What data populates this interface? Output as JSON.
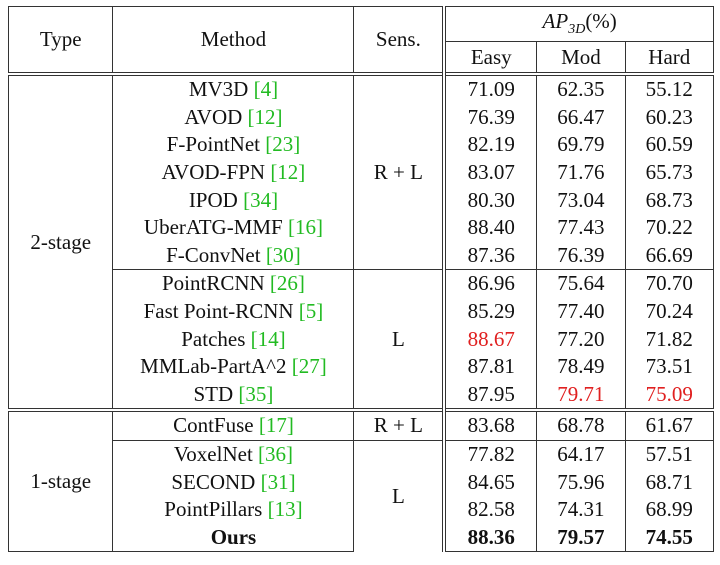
{
  "header": {
    "type": "Type",
    "method": "Method",
    "sens": "Sens.",
    "metric": "AP",
    "metric_sub": "3D",
    "metric_unit": "(%)",
    "columns": [
      "Easy",
      "Mod",
      "Hard"
    ]
  },
  "groups": [
    {
      "type": "2-stage",
      "subgroups": [
        {
          "sensor": "R + L",
          "rows": [
            {
              "method": "MV3D",
              "ref": "[4]",
              "easy": "71.09",
              "mod": "62.35",
              "hard": "55.12"
            },
            {
              "method": "AVOD",
              "ref": "[12]",
              "easy": "76.39",
              "mod": "66.47",
              "hard": "60.23"
            },
            {
              "method": "F-PointNet",
              "ref": "[23]",
              "easy": "82.19",
              "mod": "69.79",
              "hard": "60.59"
            },
            {
              "method": "AVOD-FPN",
              "ref": "[12]",
              "easy": "83.07",
              "mod": "71.76",
              "hard": "65.73"
            },
            {
              "method": "IPOD",
              "ref": "[34]",
              "easy": "80.30",
              "mod": "73.04",
              "hard": "68.73"
            },
            {
              "method": "UberATG-MMF",
              "ref": "[16]",
              "easy": "88.40",
              "mod": "77.43",
              "hard": "70.22"
            },
            {
              "method": "F-ConvNet",
              "ref": "[30]",
              "easy": "87.36",
              "mod": "76.39",
              "hard": "66.69"
            }
          ]
        },
        {
          "sensor": "L",
          "rows": [
            {
              "method": "PointRCNN",
              "ref": "[26]",
              "easy": "86.96",
              "mod": "75.64",
              "hard": "70.70"
            },
            {
              "method": "Fast Point-RCNN",
              "ref": "[5]",
              "easy": "85.29",
              "mod": "77.40",
              "hard": "70.24"
            },
            {
              "method": "Patches",
              "ref": "[14]",
              "easy": "88.67",
              "mod": "77.20",
              "hard": "71.82",
              "highlight": [
                "easy"
              ]
            },
            {
              "method": "MMLab-PartA^2",
              "ref": "[27]",
              "easy": "87.81",
              "mod": "78.49",
              "hard": "73.51"
            },
            {
              "method": "STD",
              "ref": "[35]",
              "easy": "87.95",
              "mod": "79.71",
              "hard": "75.09",
              "highlight": [
                "mod",
                "hard"
              ]
            }
          ]
        }
      ]
    },
    {
      "type": "1-stage",
      "subgroups": [
        {
          "sensor": "R + L",
          "rows": [
            {
              "method": "ContFuse",
              "ref": "[17]",
              "easy": "83.68",
              "mod": "68.78",
              "hard": "61.67"
            }
          ]
        },
        {
          "sensor": "L",
          "rows": [
            {
              "method": "VoxelNet",
              "ref": "[36]",
              "easy": "77.82",
              "mod": "64.17",
              "hard": "57.51"
            },
            {
              "method": "SECOND",
              "ref": "[31]",
              "easy": "84.65",
              "mod": "75.96",
              "hard": "68.71"
            },
            {
              "method": "PointPillars",
              "ref": "[13]",
              "easy": "82.58",
              "mod": "74.31",
              "hard": "68.99"
            },
            {
              "method": "Ours",
              "easy": "88.36",
              "mod": "79.57",
              "hard": "74.55",
              "bold": true
            }
          ]
        }
      ]
    }
  ]
}
